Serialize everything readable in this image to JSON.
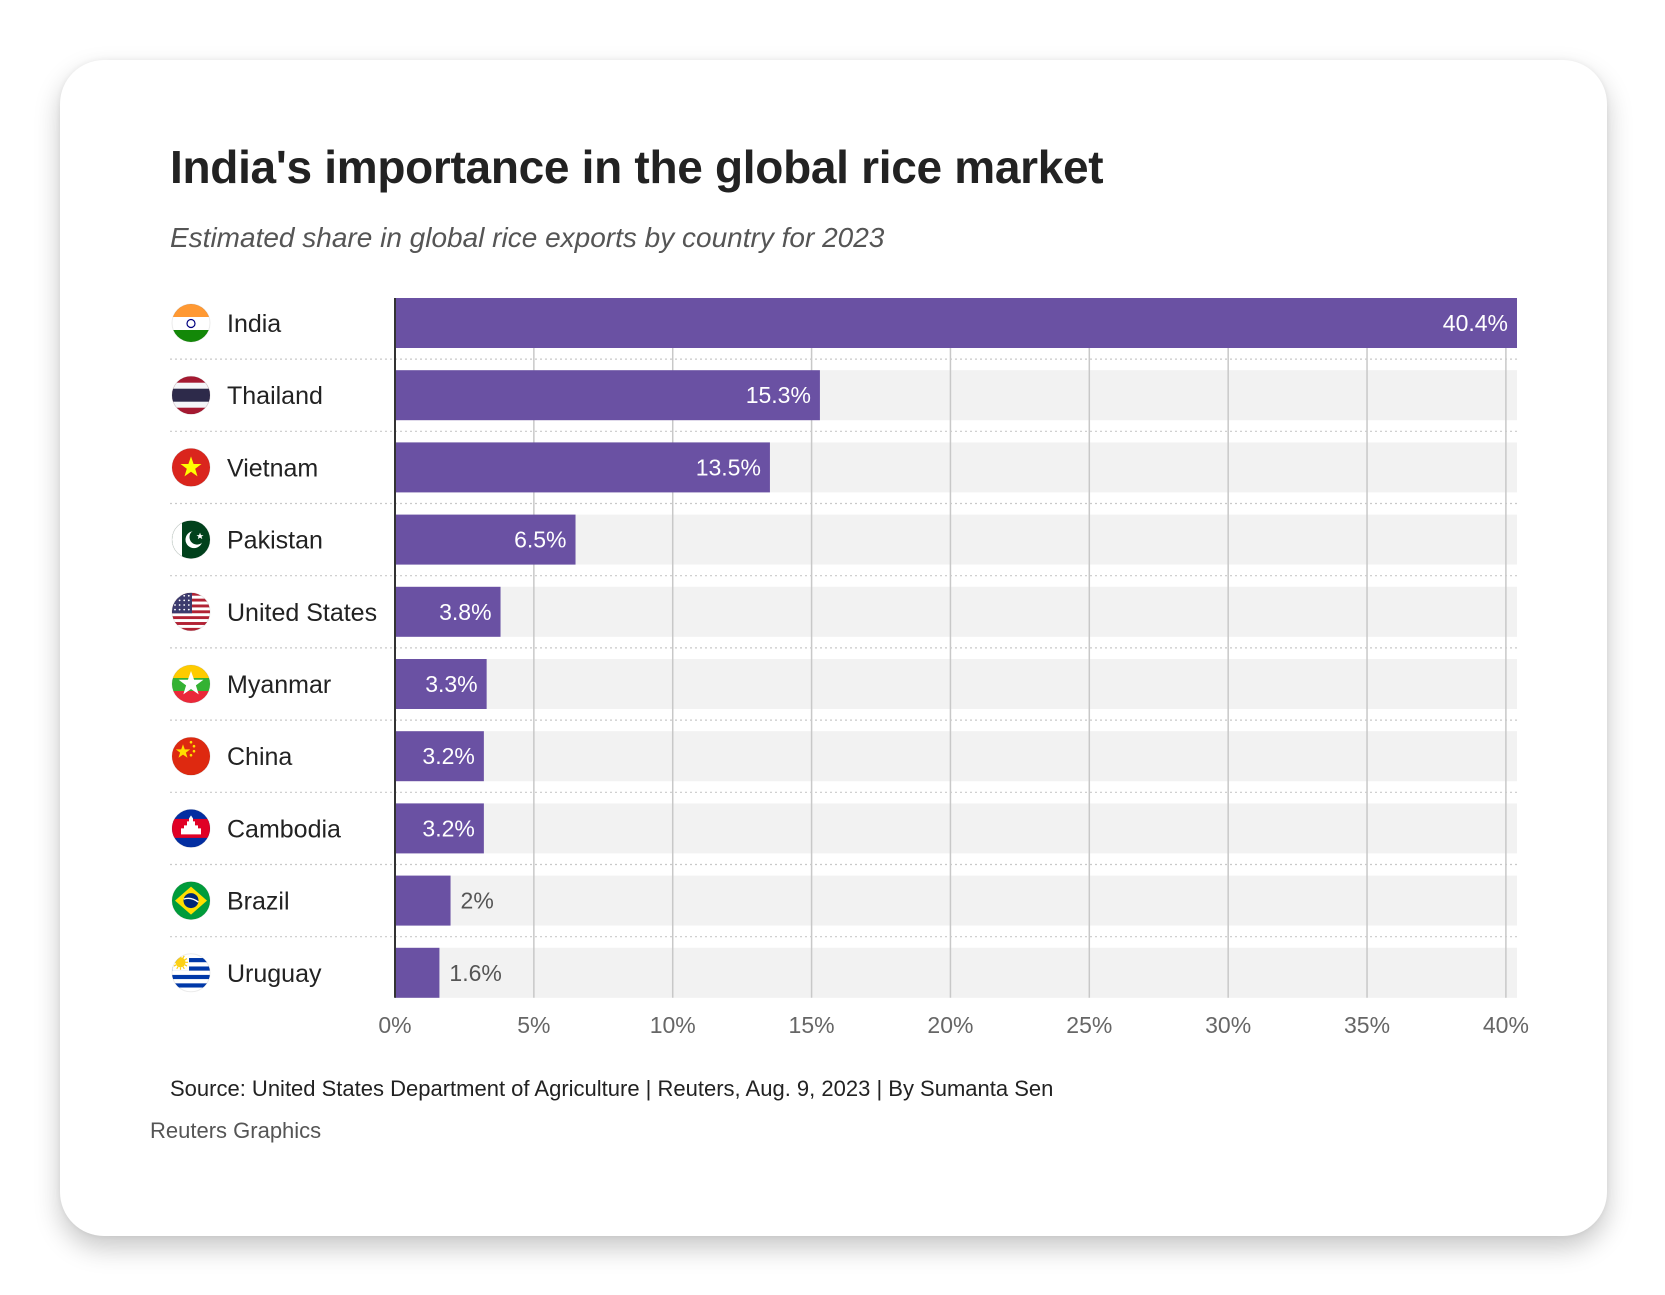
{
  "header": {
    "title": "India's importance in the global rice market",
    "subtitle": "Estimated share in global rice exports by country for 2023"
  },
  "chart_data": {
    "type": "bar",
    "orientation": "horizontal",
    "title": "India's importance in the global rice market",
    "subtitle": "Estimated share in global rice exports by country for 2023",
    "xlabel": "",
    "ylabel": "",
    "xlim": [
      0,
      40.4
    ],
    "x_ticks": [
      0,
      5,
      10,
      15,
      20,
      25,
      30,
      35,
      40
    ],
    "x_tick_labels": [
      "0%",
      "5%",
      "10%",
      "15%",
      "20%",
      "25%",
      "30%",
      "35%",
      "40%"
    ],
    "grid": true,
    "bar_color": "#6a51a3",
    "categories": [
      "India",
      "Thailand",
      "Vietnam",
      "Pakistan",
      "United States",
      "Myanmar",
      "China",
      "Cambodia",
      "Brazil",
      "Uruguay"
    ],
    "values": [
      40.4,
      15.3,
      13.5,
      6.5,
      3.8,
      3.3,
      3.2,
      3.2,
      2,
      1.6
    ],
    "value_labels": [
      "40.4%",
      "15.3%",
      "13.5%",
      "6.5%",
      "3.8%",
      "3.3%",
      "3.2%",
      "3.2%",
      "2%",
      "1.6%"
    ],
    "flags": [
      "india-flag-icon",
      "thailand-flag-icon",
      "vietnam-flag-icon",
      "pakistan-flag-icon",
      "us-flag-icon",
      "myanmar-flag-icon",
      "china-flag-icon",
      "cambodia-flag-icon",
      "brazil-flag-icon",
      "uruguay-flag-icon"
    ]
  },
  "footer": {
    "source": "Source: United States Department of Agriculture | Reuters, Aug. 9, 2023 | By Sumanta Sen",
    "credit": "Reuters Graphics"
  },
  "colors": {
    "bar": "#6a51a3",
    "track": "#f2f2f2",
    "grid": "#c8c8c8",
    "text": "#222222"
  }
}
